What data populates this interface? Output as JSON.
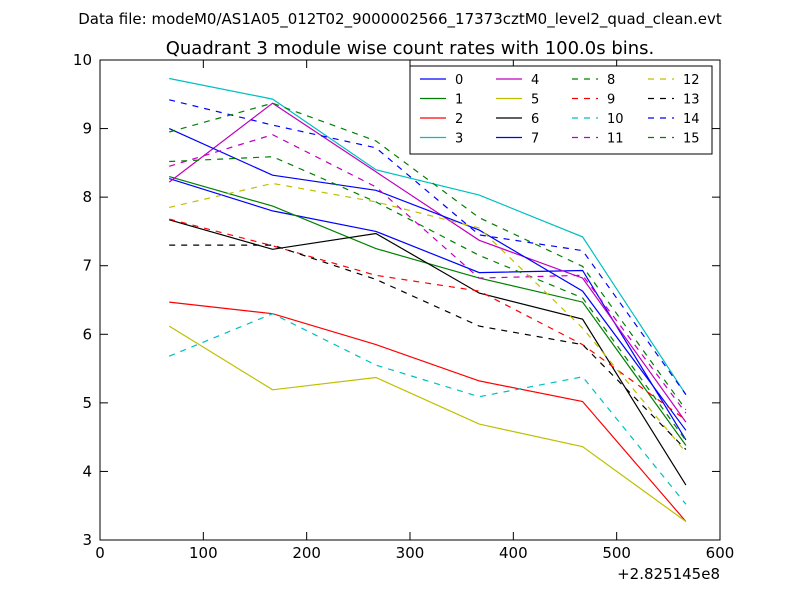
{
  "header": {
    "data_file_label": "Data file: modeM0/AS1A05_012T02_9000002566_17373cztM0_level2_quad_clean.evt"
  },
  "chart_data": {
    "type": "line",
    "title": "Quadrant 3 module wise count rates with 100.0s bins.",
    "xlabel": "",
    "ylabel": "",
    "x_offset_label": "+2.825145e8",
    "xlim": [
      0,
      600
    ],
    "ylim": [
      3,
      10
    ],
    "x_ticks": [
      0,
      100,
      200,
      300,
      400,
      500,
      600
    ],
    "y_ticks": [
      3,
      4,
      5,
      6,
      7,
      8,
      9,
      10
    ],
    "grid": false,
    "legend_position": "top-right",
    "legend_columns": 4,
    "x": [
      67,
      167,
      267,
      367,
      467,
      567
    ],
    "series": [
      {
        "name": "0",
        "color": "#0000ff",
        "dash": "solid",
        "values": [
          8.27,
          7.8,
          7.5,
          6.9,
          6.93,
          4.46
        ]
      },
      {
        "name": "1",
        "color": "#008000",
        "dash": "solid",
        "values": [
          8.3,
          7.87,
          7.25,
          6.82,
          6.47,
          4.38
        ]
      },
      {
        "name": "2",
        "color": "#ff0000",
        "dash": "solid",
        "values": [
          6.47,
          6.3,
          5.85,
          5.32,
          5.02,
          3.27
        ]
      },
      {
        "name": "3",
        "color": "#00bfbf",
        "dash": "solid",
        "values": [
          9.73,
          9.43,
          8.4,
          8.03,
          7.42,
          5.12
        ]
      },
      {
        "name": "4",
        "color": "#bf00bf",
        "dash": "solid",
        "values": [
          8.22,
          9.37,
          8.37,
          7.37,
          6.82,
          4.72
        ]
      },
      {
        "name": "5",
        "color": "#bfbf00",
        "dash": "solid",
        "values": [
          6.12,
          5.19,
          5.37,
          4.69,
          4.36,
          3.27
        ]
      },
      {
        "name": "6",
        "color": "#000000",
        "dash": "solid",
        "values": [
          7.67,
          7.24,
          7.47,
          6.6,
          6.22,
          3.8
        ]
      },
      {
        "name": "7",
        "color": "#0000ff",
        "dash": "solid",
        "values": [
          9.0,
          8.32,
          8.1,
          7.52,
          6.63,
          4.6
        ]
      },
      {
        "name": "8",
        "color": "#008000",
        "dash": "dashed",
        "values": [
          8.52,
          8.59,
          7.93,
          7.15,
          6.53,
          4.45
        ]
      },
      {
        "name": "9",
        "color": "#ff0000",
        "dash": "dashed",
        "values": [
          7.68,
          7.29,
          6.86,
          6.63,
          5.85,
          4.75
        ]
      },
      {
        "name": "10",
        "color": "#00bfbf",
        "dash": "dashed",
        "values": [
          5.68,
          6.3,
          5.55,
          5.09,
          5.38,
          3.52
        ]
      },
      {
        "name": "11",
        "color": "#bf00bf",
        "dash": "dashed",
        "values": [
          8.45,
          8.91,
          8.15,
          6.82,
          6.86,
          4.85
        ]
      },
      {
        "name": "12",
        "color": "#bfbf00",
        "dash": "dashed",
        "values": [
          7.85,
          8.2,
          7.93,
          7.55,
          6.09,
          4.28
        ]
      },
      {
        "name": "13",
        "color": "#000000",
        "dash": "dashed",
        "values": [
          7.3,
          7.3,
          6.8,
          6.12,
          5.85,
          4.32
        ]
      },
      {
        "name": "14",
        "color": "#0000ff",
        "dash": "dashed",
        "values": [
          9.42,
          9.05,
          8.72,
          7.45,
          7.22,
          5.12
        ]
      },
      {
        "name": "15",
        "color": "#008000",
        "dash": "dashed",
        "values": [
          8.95,
          9.37,
          8.82,
          7.7,
          6.99,
          4.9
        ]
      }
    ]
  }
}
